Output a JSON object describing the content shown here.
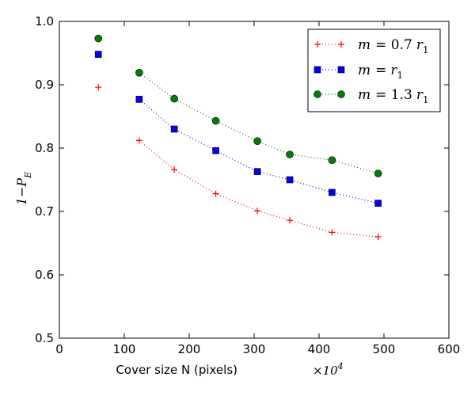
{
  "chart_data": {
    "type": "line",
    "xlabel": "Cover size N (pixels)",
    "xlabel_multiplier": "×10",
    "xlabel_multiplier_exp": "4",
    "ylabel_main": "1−P",
    "ylabel_sub": "E",
    "xlim": [
      0,
      600
    ],
    "ylim": [
      0.5,
      1.0
    ],
    "xticks": [
      0,
      100,
      200,
      300,
      400,
      500,
      600
    ],
    "yticks": [
      0.5,
      0.6,
      0.7,
      0.8,
      0.9,
      1.0
    ],
    "xtick_labels": [
      "0",
      "100",
      "200",
      "300",
      "400",
      "500",
      "600"
    ],
    "ytick_labels": [
      "0.5",
      "0.6",
      "0.7",
      "0.8",
      "0.9",
      "1.0"
    ],
    "legend_position": "top-right",
    "series": [
      {
        "name": "m = 0.7 r1",
        "legend_label": {
          "var": "m",
          "eq": "= 0.7",
          "r": "r",
          "sub": "1"
        },
        "color": "#ff0000",
        "marker": "plus",
        "x": [
          60,
          123,
          177,
          241,
          305,
          355,
          420,
          491
        ],
        "y": [
          0.896,
          0.812,
          0.766,
          0.728,
          0.701,
          0.686,
          0.667,
          0.66
        ]
      },
      {
        "name": "m = r1",
        "legend_label": {
          "var": "m",
          "eq": "=",
          "r": "r",
          "sub": "1"
        },
        "color": "#0000ff",
        "marker": "square",
        "x": [
          60,
          123,
          177,
          241,
          305,
          355,
          420,
          491
        ],
        "y": [
          0.948,
          0.877,
          0.83,
          0.796,
          0.763,
          0.75,
          0.73,
          0.713
        ]
      },
      {
        "name": "m = 1.3 r1",
        "legend_label": {
          "var": "m",
          "eq": "= 1.3",
          "r": "r",
          "sub": "1"
        },
        "color": "#007f00",
        "marker": "circle",
        "x": [
          60,
          123,
          177,
          241,
          305,
          355,
          420,
          491
        ],
        "y": [
          0.973,
          0.919,
          0.878,
          0.843,
          0.811,
          0.79,
          0.781,
          0.76
        ]
      }
    ]
  }
}
